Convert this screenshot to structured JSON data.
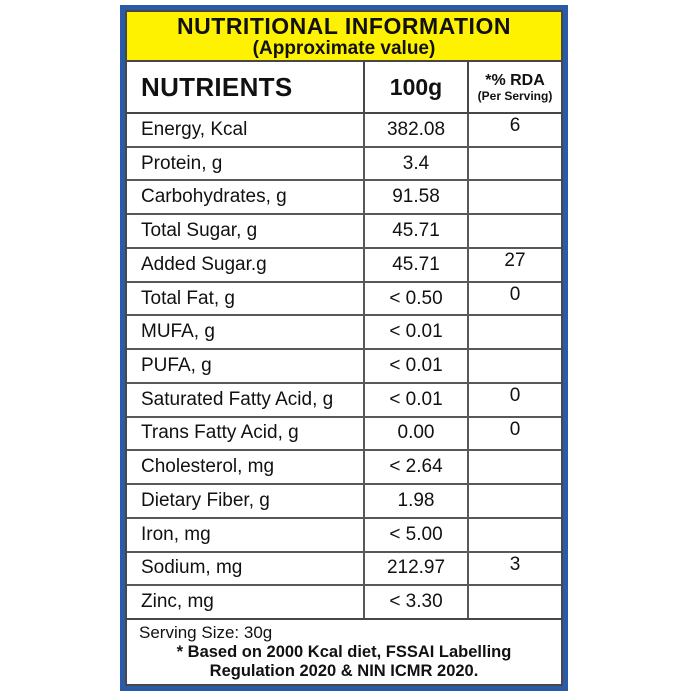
{
  "colors": {
    "outer_border_blue": "#2a5ba8",
    "inner_border_dark": "#474747",
    "header_yellow": "#FFF200",
    "text_black": "#111111"
  },
  "header": {
    "title": "NUTRITIONAL INFORMATION",
    "subtitle": "(Approximate value)"
  },
  "table": {
    "header": {
      "nutrients": "NUTRIENTS",
      "per_100g": "100g",
      "rda_line1": "*% RDA",
      "rda_line2": "(Per Serving)"
    },
    "rows": [
      {
        "nutrient": "Energy, Kcal",
        "per100g": "382.08",
        "rda": "6"
      },
      {
        "nutrient": "Protein, g",
        "per100g": "3.4",
        "rda": ""
      },
      {
        "nutrient": "Carbohydrates, g",
        "per100g": "91.58",
        "rda": ""
      },
      {
        "nutrient": "Total Sugar, g",
        "per100g": "45.71",
        "rda": ""
      },
      {
        "nutrient": "Added Sugar.g",
        "per100g": "45.71",
        "rda": "27"
      },
      {
        "nutrient": "Total Fat, g",
        "per100g": "< 0.50",
        "rda": "0"
      },
      {
        "nutrient": "MUFA, g",
        "per100g": "< 0.01",
        "rda": ""
      },
      {
        "nutrient": "PUFA, g",
        "per100g": "< 0.01",
        "rda": ""
      },
      {
        "nutrient": "Saturated Fatty Acid, g",
        "per100g": "< 0.01",
        "rda": "0"
      },
      {
        "nutrient": "Trans Fatty Acid, g",
        "per100g": "0.00",
        "rda": "0"
      },
      {
        "nutrient": "Cholesterol, mg",
        "per100g": "< 2.64",
        "rda": ""
      },
      {
        "nutrient": "Dietary Fiber, g",
        "per100g": "1.98",
        "rda": ""
      },
      {
        "nutrient": "Iron, mg",
        "per100g": "< 5.00",
        "rda": ""
      },
      {
        "nutrient": "Sodium, mg",
        "per100g": "212.97",
        "rda": "3"
      },
      {
        "nutrient": "Zinc, mg",
        "per100g": "< 3.30",
        "rda": ""
      }
    ]
  },
  "footer": {
    "serving_size": "Serving Size: 30g",
    "note_line1": "* Based on 2000 Kcal diet, FSSAI Labelling",
    "note_line2": "Regulation 2020 & NIN ICMR 2020."
  }
}
